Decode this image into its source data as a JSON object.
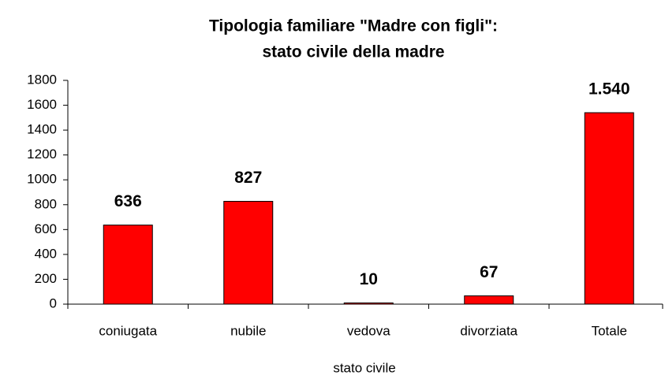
{
  "chart_data": {
    "type": "bar",
    "title": [
      "Tipologia familiare \"Madre con figli\":",
      "stato civile della madre"
    ],
    "x_label": "stato civile",
    "categories": [
      "coniugata",
      "nubile",
      "vedova",
      "divorziata",
      "Totale"
    ],
    "values": [
      636,
      827,
      10,
      67,
      1540
    ],
    "value_labels": [
      "636",
      "827",
      "10",
      "67",
      "1.540"
    ],
    "color": "#ff0000",
    "ylim": [
      0,
      1800
    ],
    "yticks": [
      0,
      200,
      400,
      600,
      800,
      1000,
      1200,
      1400,
      1600,
      1800
    ],
    "grid": false
  }
}
